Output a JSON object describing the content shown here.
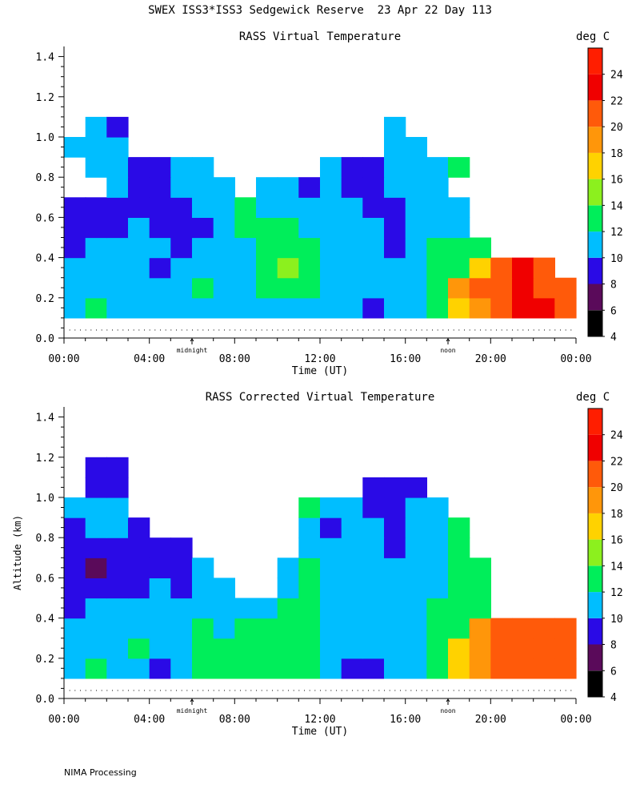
{
  "title": "SWEX ISS3*ISS3 Sedgewick Reserve  23 Apr 22 Day 113",
  "footer": "NIMA Processing",
  "colorbar": {
    "unit": "deg C",
    "ticks": [
      4,
      6,
      8,
      10,
      12,
      14,
      16,
      18,
      20,
      22,
      24
    ],
    "bands": [
      {
        "from": 4,
        "to": 6,
        "color": "#000000"
      },
      {
        "from": 6,
        "to": 8,
        "color": "#5a0a5a"
      },
      {
        "from": 8,
        "to": 10,
        "color": "#2a0ae6"
      },
      {
        "from": 10,
        "to": 12,
        "color": "#00beff"
      },
      {
        "from": 12,
        "to": 14,
        "color": "#00ee5a"
      },
      {
        "from": 14,
        "to": 16,
        "color": "#8cf01e"
      },
      {
        "from": 16,
        "to": 18,
        "color": "#ffd200"
      },
      {
        "from": 18,
        "to": 20,
        "color": "#ff960a"
      },
      {
        "from": 20,
        "to": 22,
        "color": "#ff5a0a"
      },
      {
        "from": 22,
        "to": 24,
        "color": "#f00000"
      },
      {
        "from": 24,
        "to": 26,
        "color": "#ff1e00"
      }
    ]
  },
  "chart_data": [
    {
      "type": "heatmap",
      "title": "RASS Virtual Temperature",
      "xlabel": "Time (UT)",
      "ylabel": "",
      "xlim": [
        0,
        24
      ],
      "ylim": [
        0,
        1.45
      ],
      "xticks": [
        "00:00",
        "04:00",
        "08:00",
        "12:00",
        "16:00",
        "20:00",
        "00:00"
      ],
      "yticks": [
        "0.0",
        "0.2",
        "0.4",
        "0.6",
        "0.8",
        "1.0",
        "1.2",
        "1.4"
      ],
      "markers": [
        {
          "x": 6,
          "label": "midnight"
        },
        {
          "x": 18,
          "label": "noon"
        }
      ],
      "z_unit": "deg C",
      "time_hours": [
        0.5,
        1.5,
        2.5,
        3.5,
        4.5,
        5.5,
        6.5,
        7.5,
        8.5,
        9.5,
        10.5,
        11.5,
        12.5,
        13.5,
        14.5,
        15.5,
        16.5,
        17.5,
        18.5,
        19.5,
        20.5,
        21.5,
        22.5,
        23.5
      ],
      "altitude_km": [
        0.15,
        0.25,
        0.35,
        0.45,
        0.55,
        0.65,
        0.75,
        0.85,
        0.95,
        1.05
      ],
      "temperature_c": [
        [
          11,
          12.5,
          11,
          11,
          11,
          11,
          11.5,
          11,
          11,
          11,
          11,
          11,
          11,
          11,
          9,
          11,
          11,
          12.5,
          16,
          19,
          20.5,
          22.5,
          23,
          21.5
        ],
        [
          11,
          11,
          11,
          11,
          11,
          11,
          12.5,
          11,
          11,
          12.5,
          13,
          12.5,
          11,
          11,
          11,
          11,
          11,
          12.5,
          18,
          20.5,
          21.5,
          22.5,
          21.5,
          21
        ],
        [
          11,
          11,
          11,
          11,
          9,
          11,
          11,
          11,
          11,
          12.5,
          14.5,
          12.5,
          11,
          11,
          11,
          11,
          11,
          12.5,
          13,
          16,
          20,
          22.5,
          21,
          null
        ],
        [
          9,
          11,
          11,
          11,
          11,
          9,
          11,
          11,
          11,
          12.5,
          13,
          12.5,
          11,
          11,
          11,
          9,
          11,
          12.5,
          13,
          12.5,
          null,
          null,
          null,
          null
        ],
        [
          9,
          9,
          9,
          11,
          9,
          9,
          9,
          11,
          12.5,
          12.5,
          12.5,
          11,
          11,
          11,
          11,
          9,
          11,
          11,
          11,
          null,
          null,
          null,
          null,
          null
        ],
        [
          9,
          9,
          9,
          9,
          9,
          9,
          11,
          11,
          12.5,
          11,
          11,
          11,
          11,
          11,
          9,
          9,
          11,
          11,
          11,
          null,
          null,
          null,
          null,
          null
        ],
        [
          null,
          null,
          11,
          9,
          9,
          11,
          11,
          11,
          null,
          11,
          11,
          9,
          11,
          9,
          9,
          11,
          11,
          11,
          null,
          null,
          null,
          null,
          null,
          null
        ],
        [
          null,
          11,
          11,
          9,
          9,
          11,
          11,
          null,
          null,
          null,
          null,
          null,
          11,
          9,
          9,
          11,
          11,
          11,
          12.5,
          null,
          null,
          null,
          null,
          null
        ],
        [
          11,
          11,
          11,
          null,
          null,
          null,
          null,
          null,
          null,
          null,
          null,
          null,
          null,
          null,
          null,
          11,
          11,
          null,
          null,
          null,
          null,
          null,
          null,
          null
        ],
        [
          null,
          11,
          9,
          null,
          null,
          null,
          null,
          null,
          null,
          null,
          null,
          null,
          null,
          null,
          null,
          11,
          null,
          null,
          null,
          null,
          null,
          null,
          null,
          null
        ]
      ]
    },
    {
      "type": "heatmap",
      "title": "RASS Corrected Virtual Temperature",
      "xlabel": "Time (UT)",
      "ylabel": "Altitude (km)",
      "xlim": [
        0,
        24
      ],
      "ylim": [
        0,
        1.45
      ],
      "xticks": [
        "00:00",
        "04:00",
        "08:00",
        "12:00",
        "16:00",
        "20:00",
        "00:00"
      ],
      "yticks": [
        "0.0",
        "0.2",
        "0.4",
        "0.6",
        "0.8",
        "1.0",
        "1.2",
        "1.4"
      ],
      "markers": [
        {
          "x": 6,
          "label": "midnight"
        },
        {
          "x": 18,
          "label": "noon"
        }
      ],
      "z_unit": "deg C",
      "time_hours": [
        0.5,
        1.5,
        2.5,
        3.5,
        4.5,
        5.5,
        6.5,
        7.5,
        8.5,
        9.5,
        10.5,
        11.5,
        12.5,
        13.5,
        14.5,
        15.5,
        16.5,
        17.5,
        18.5,
        19.5,
        20.5,
        21.5,
        22.5,
        23.5
      ],
      "altitude_km": [
        0.15,
        0.25,
        0.35,
        0.45,
        0.55,
        0.65,
        0.75,
        0.85,
        0.95,
        1.05,
        1.15
      ],
      "temperature_c": [
        [
          11,
          12.5,
          11,
          11,
          9,
          11,
          12.5,
          12.5,
          12.5,
          12.5,
          12.5,
          12.5,
          11,
          9,
          9,
          11,
          11,
          12.5,
          16,
          18.5,
          20.5,
          21.5,
          21,
          21.5
        ],
        [
          11,
          11,
          11,
          12.5,
          11,
          11,
          12.5,
          12.5,
          12.5,
          13,
          13.5,
          12.5,
          11,
          11,
          11,
          11,
          11,
          13,
          16.5,
          19,
          20.5,
          21,
          20.5,
          20.5
        ],
        [
          11,
          11,
          11,
          11,
          11,
          11,
          12.5,
          11,
          12.5,
          12.5,
          12.5,
          12.5,
          11,
          11,
          11,
          11,
          11,
          12.5,
          13,
          18,
          20.5,
          20.5,
          20.5,
          21
        ],
        [
          9,
          11,
          11,
          11,
          11,
          11,
          11,
          11,
          11,
          11,
          12.5,
          12.5,
          11,
          11,
          11,
          11,
          11,
          12.5,
          12.5,
          12.5,
          null,
          null,
          null,
          null
        ],
        [
          9,
          9,
          9,
          9,
          11,
          9,
          11,
          11,
          null,
          null,
          11,
          12.5,
          11,
          11,
          11,
          11,
          11,
          11,
          12.5,
          12.5,
          null,
          null,
          null,
          null
        ],
        [
          9,
          7,
          9,
          9,
          9,
          9,
          11,
          null,
          null,
          null,
          11,
          12.5,
          11,
          11,
          11,
          11,
          11,
          11,
          12.5,
          12.5,
          null,
          null,
          null,
          null
        ],
        [
          9,
          9,
          9,
          9,
          9,
          9,
          null,
          null,
          null,
          null,
          null,
          11,
          11,
          11,
          11,
          9,
          11,
          11,
          12.5,
          null,
          null,
          null,
          null,
          null
        ],
        [
          9,
          11,
          11,
          9,
          null,
          null,
          null,
          null,
          null,
          null,
          null,
          11,
          9,
          11,
          11,
          9,
          11,
          11,
          12.5,
          null,
          null,
          null,
          null,
          null
        ],
        [
          11,
          11,
          11,
          null,
          null,
          null,
          null,
          null,
          null,
          null,
          null,
          12.5,
          11,
          11,
          9,
          9,
          11,
          11,
          null,
          null,
          null,
          null,
          null,
          null
        ],
        [
          null,
          9,
          9,
          null,
          null,
          null,
          null,
          null,
          null,
          null,
          null,
          null,
          null,
          null,
          9,
          9,
          9,
          null,
          null,
          null,
          null,
          null,
          null,
          null
        ],
        [
          null,
          9,
          9,
          null,
          null,
          null,
          null,
          null,
          null,
          null,
          null,
          null,
          null,
          null,
          null,
          null,
          null,
          null,
          null,
          null,
          null,
          null,
          null,
          null
        ]
      ]
    }
  ]
}
